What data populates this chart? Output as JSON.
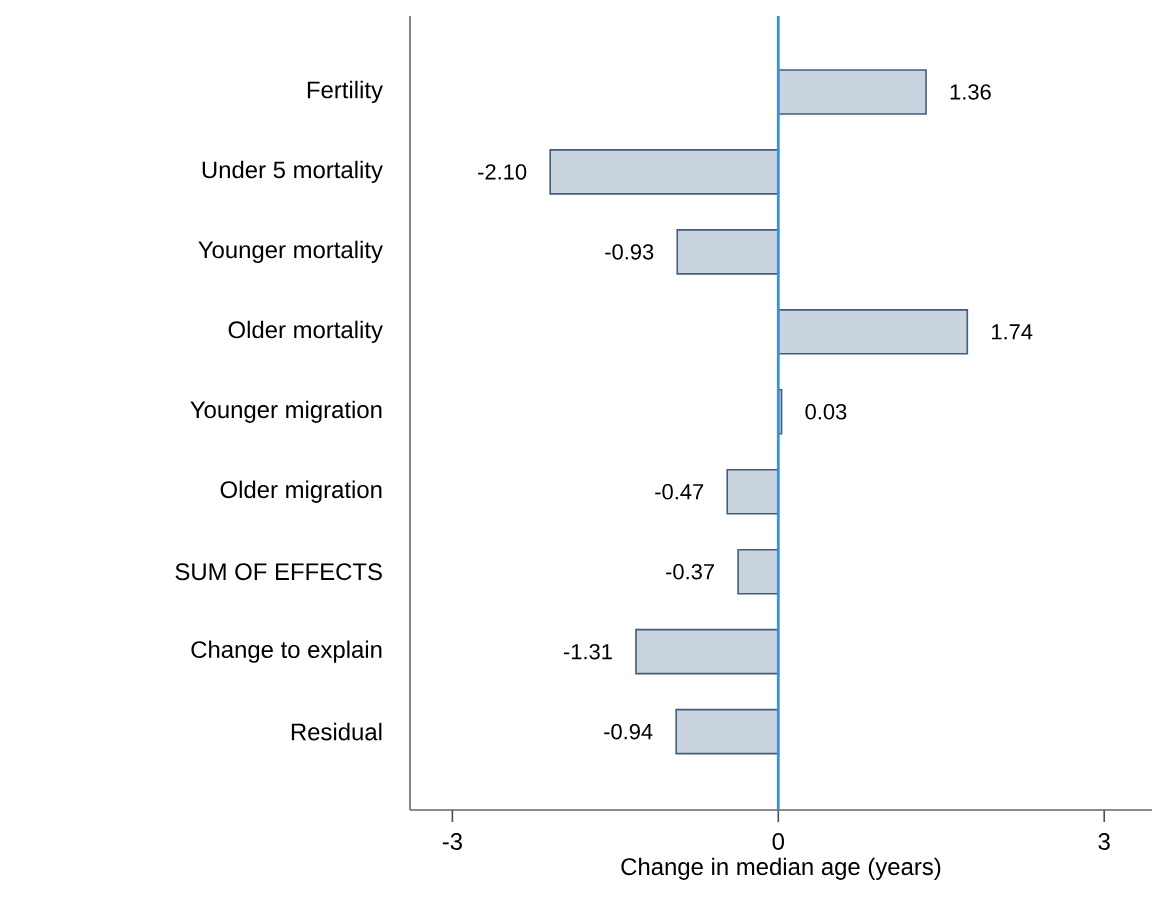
{
  "chart_data": {
    "type": "bar",
    "orientation": "horizontal",
    "categories": [
      "Fertility",
      "Under 5 mortality",
      "Younger mortality",
      "Older mortality",
      "Younger migration",
      "Older migration",
      "SUM OF EFFECTS",
      "Change to explain",
      "Residual"
    ],
    "values": [
      1.36,
      -2.1,
      -0.93,
      1.74,
      0.03,
      -0.47,
      -0.37,
      -1.31,
      -0.94
    ],
    "value_labels": [
      "1.36",
      "-2.10",
      "-0.93",
      "1.74",
      "0.03",
      "-0.47",
      "-0.37",
      "-1.31",
      "-0.94"
    ],
    "color": "#c8d3de",
    "xlim": [
      -3.39,
      3.44
    ],
    "xticks": [
      -3,
      0,
      3
    ],
    "xlabel": "Change in median age (years)",
    "ref_lines": [
      {
        "axis": "x",
        "value": 0,
        "color": "#3c8ee3"
      }
    ]
  }
}
